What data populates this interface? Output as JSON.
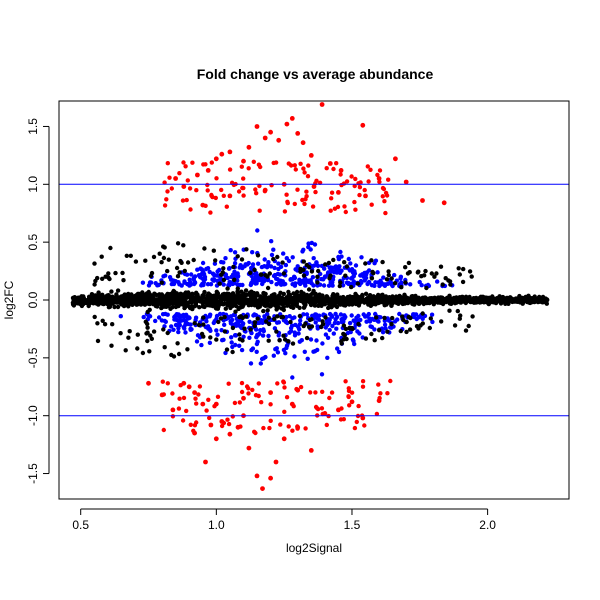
{
  "chart_data": {
    "type": "scatter",
    "title": "Fold change vs average abundance",
    "xlabel": "log2Signal",
    "ylabel": "log2FC",
    "xlim": [
      0.42,
      2.3
    ],
    "ylim": [
      -1.72,
      1.72
    ],
    "x_ticks": [
      0.5,
      1.0,
      1.5,
      2.0
    ],
    "x_tick_labels": [
      "0.5",
      "1.0",
      "1.5",
      "2.0"
    ],
    "y_ticks": [
      -1.5,
      -1.0,
      -0.5,
      0.0,
      0.5,
      1.0,
      1.5
    ],
    "y_tick_labels": [
      "-1.5",
      "-1.0",
      "-0.5",
      "0.0",
      "0.5",
      "1.0",
      "1.5"
    ],
    "hlines": [
      1.0,
      -1.0
    ],
    "hline_color": "#0000ff",
    "grid": false,
    "colors": {
      "not_significant": "#000000",
      "significant": "#0000ff",
      "high_fold_change": "#ff0000"
    },
    "series": [
      {
        "color": "#ff0000",
        "points": [
          [
            0.85,
            1.05
          ],
          [
            0.88,
            0.98
          ],
          [
            0.93,
            1.08
          ],
          [
            0.97,
            1.12
          ],
          [
            1.0,
            1.22
          ],
          [
            1.02,
            1.26
          ],
          [
            1.05,
            1.28
          ],
          [
            1.1,
            1.2
          ],
          [
            1.12,
            1.32
          ],
          [
            1.15,
            1.5
          ],
          [
            1.18,
            1.4
          ],
          [
            1.2,
            1.45
          ],
          [
            1.23,
            1.38
          ],
          [
            1.26,
            1.52
          ],
          [
            1.28,
            1.57
          ],
          [
            1.3,
            1.44
          ],
          [
            1.32,
            1.36
          ],
          [
            1.35,
            1.25
          ],
          [
            1.39,
            1.69
          ],
          [
            1.42,
            1.18
          ],
          [
            1.46,
            1.12
          ],
          [
            1.54,
            1.51
          ],
          [
            1.6,
            1.05
          ],
          [
            1.66,
            1.22
          ],
          [
            1.7,
            1.02
          ],
          [
            1.76,
            0.86
          ],
          [
            1.84,
            0.84
          ],
          [
            0.95,
            0.82
          ],
          [
            1.05,
            0.9
          ],
          [
            1.18,
            0.95
          ],
          [
            1.25,
            1.0
          ],
          [
            1.36,
            0.98
          ],
          [
            1.45,
            0.93
          ],
          [
            1.55,
            0.9
          ],
          [
            0.88,
            -0.72
          ],
          [
            0.92,
            -0.8
          ],
          [
            0.95,
            -0.9
          ],
          [
            0.98,
            -1.08
          ],
          [
            1.0,
            -1.2
          ],
          [
            1.02,
            -1.05
          ],
          [
            1.05,
            -1.16
          ],
          [
            1.08,
            -1.1
          ],
          [
            1.12,
            -1.28
          ],
          [
            1.15,
            -1.52
          ],
          [
            1.17,
            -1.63
          ],
          [
            1.2,
            -1.54
          ],
          [
            1.22,
            -1.4
          ],
          [
            1.25,
            -1.2
          ],
          [
            1.3,
            -1.1
          ],
          [
            1.35,
            -1.3
          ],
          [
            1.4,
            -0.98
          ],
          [
            1.45,
            -0.95
          ],
          [
            1.5,
            -0.88
          ],
          [
            1.54,
            -1.02
          ],
          [
            1.6,
            -0.87
          ],
          [
            0.96,
            -1.4
          ],
          [
            0.92,
            -1.15
          ],
          [
            0.84,
            -0.95
          ],
          [
            0.8,
            -0.82
          ],
          [
            0.75,
            -0.72
          ],
          [
            1.1,
            -0.85
          ],
          [
            1.28,
            -0.9
          ],
          [
            0.9,
            -0.75
          ],
          [
            1.0,
            -0.9
          ],
          [
            1.1,
            -1.0
          ],
          [
            1.2,
            -0.8
          ],
          [
            1.3,
            -0.78
          ]
        ]
      }
    ]
  }
}
